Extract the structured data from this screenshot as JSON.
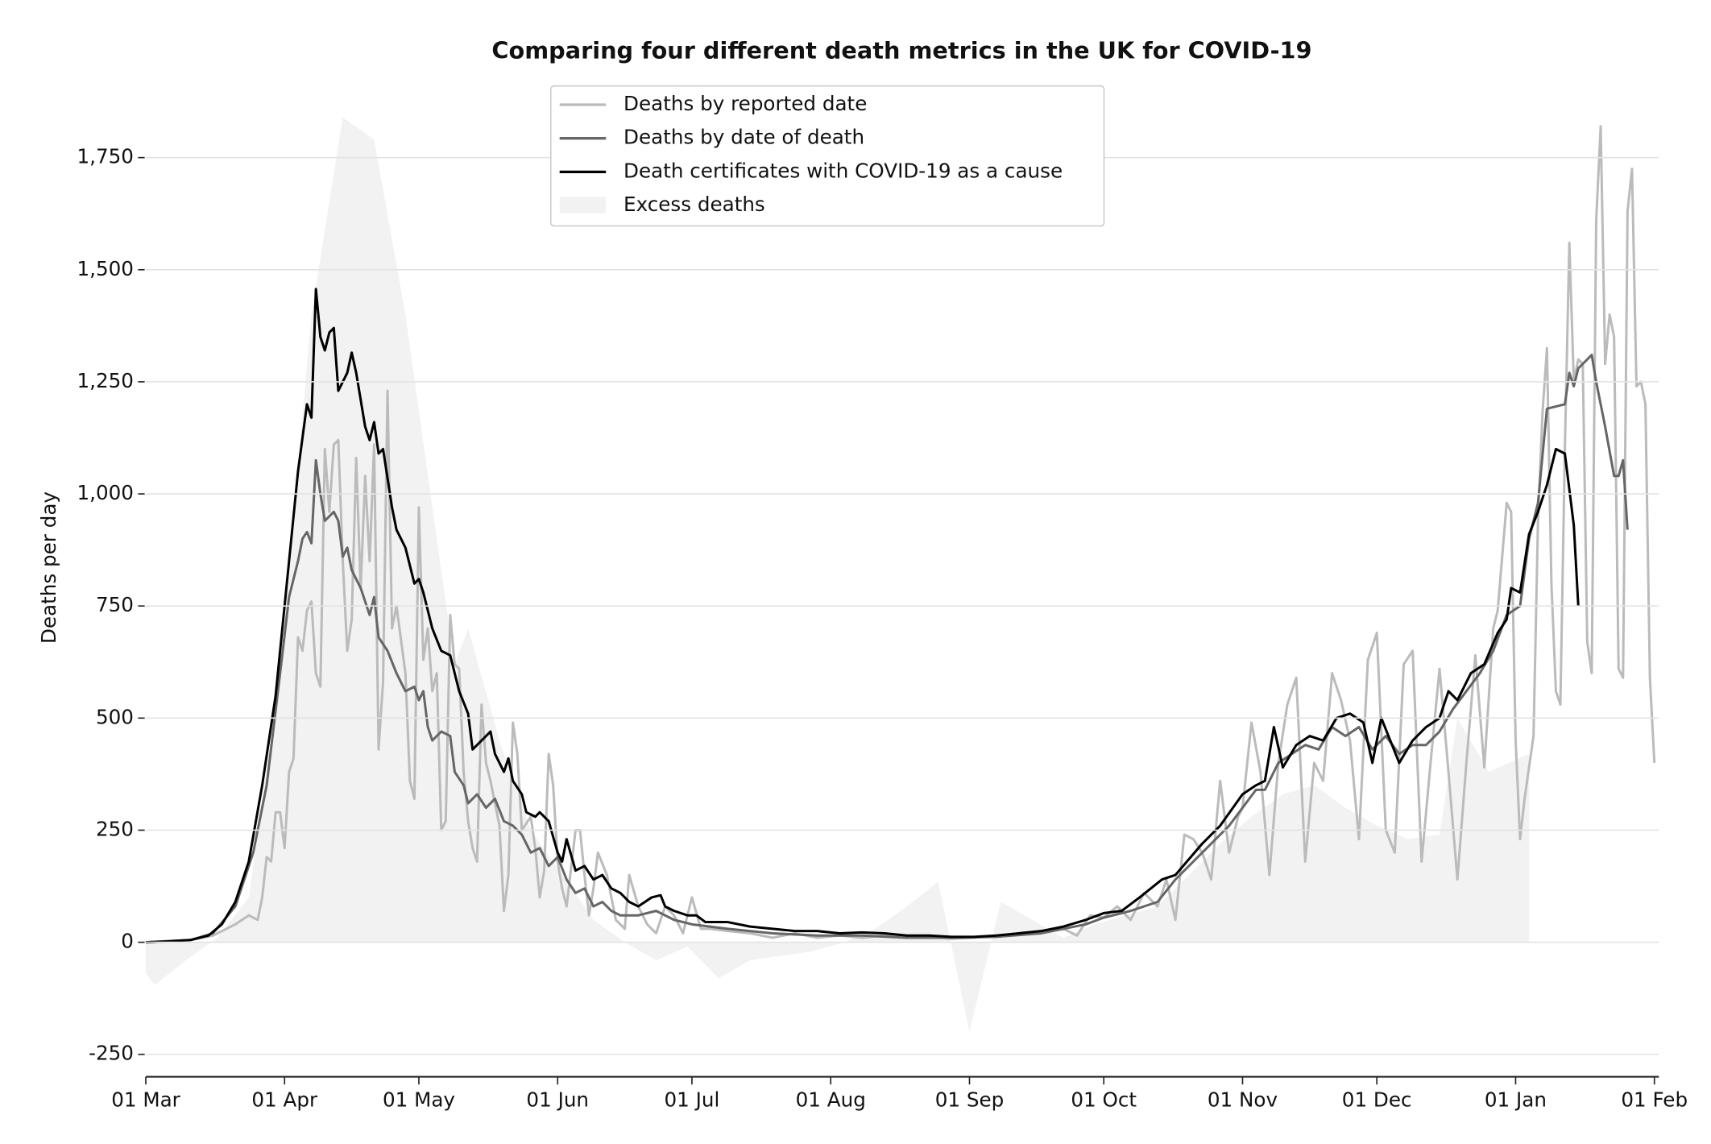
{
  "chart_data": {
    "type": "line",
    "title": "Comparing four different death metrics in the UK for COVID-19",
    "ylabel": "Deaths per day",
    "xlim": [
      0,
      338
    ],
    "ylim": [
      -300,
      1900
    ],
    "xticks": [
      {
        "value": 0,
        "label": "01 Mar"
      },
      {
        "value": 31,
        "label": "01 Apr"
      },
      {
        "value": 61,
        "label": "01 May"
      },
      {
        "value": 92,
        "label": "01 Jun"
      },
      {
        "value": 122,
        "label": "01 Jul"
      },
      {
        "value": 153,
        "label": "01 Aug"
      },
      {
        "value": 184,
        "label": "01 Sep"
      },
      {
        "value": 214,
        "label": "01 Oct"
      },
      {
        "value": 245,
        "label": "01 Nov"
      },
      {
        "value": 275,
        "label": "01 Dec"
      },
      {
        "value": 306,
        "label": "01 Jan"
      },
      {
        "value": 337,
        "label": "01 Feb"
      }
    ],
    "yticks": [
      -250,
      0,
      250,
      500,
      750,
      {
        "value": 1000,
        "label": "1,000"
      },
      {
        "value": 1250,
        "label": "1,250"
      },
      {
        "value": 1500,
        "label": "1,500"
      },
      {
        "value": 1750,
        "label": "1,750"
      }
    ],
    "grid": true,
    "legend": "upper center",
    "series": [
      {
        "name": "Deaths by reported date",
        "color": "#bbbbbb",
        "kind": "line",
        "x": [
          0,
          10,
          15,
          20,
          23,
          25,
          26,
          27,
          28,
          29,
          30,
          31,
          32,
          33,
          34,
          35,
          36,
          37,
          38,
          39,
          40,
          41,
          42,
          43,
          44,
          45,
          46,
          47,
          48,
          49,
          50,
          51,
          52,
          53,
          54,
          55,
          56,
          58,
          59,
          60,
          61,
          62,
          63,
          64,
          65,
          66,
          67,
          68,
          69,
          70,
          71,
          72,
          73,
          74,
          75,
          76,
          77,
          79,
          80,
          81,
          82,
          83,
          84,
          86,
          87,
          88,
          89,
          90,
          91,
          92,
          93,
          94,
          96,
          97,
          98,
          99,
          100,
          101,
          103,
          105,
          107,
          108,
          110,
          112,
          114,
          116,
          118,
          120,
          122,
          124,
          126,
          130,
          135,
          140,
          145,
          150,
          155,
          160,
          165,
          170,
          175,
          180,
          185,
          190,
          195,
          200,
          205,
          208,
          211,
          214,
          217,
          220,
          223,
          226,
          228,
          230,
          232,
          234,
          236,
          238,
          240,
          242,
          244,
          245,
          247,
          249,
          251,
          253,
          255,
          257,
          259,
          261,
          263,
          265,
          267,
          269,
          271,
          273,
          275,
          277,
          279,
          281,
          283,
          285,
          287,
          289,
          291,
          293,
          295,
          297,
          299,
          301,
          302,
          304,
          305,
          306,
          307,
          308,
          310,
          311,
          312,
          313,
          314,
          315,
          316,
          317,
          318,
          319,
          320,
          321,
          322,
          323,
          324,
          325,
          326,
          327,
          328,
          329,
          330,
          331,
          332,
          333,
          334,
          335,
          336,
          337
        ],
        "values": [
          0,
          5,
          15,
          40,
          60,
          50,
          100,
          190,
          180,
          290,
          290,
          210,
          380,
          410,
          680,
          650,
          740,
          760,
          600,
          570,
          1100,
          960,
          1110,
          1120,
          850,
          650,
          720,
          1080,
          790,
          1040,
          850,
          1110,
          430,
          580,
          1230,
          700,
          750,
          600,
          360,
          320,
          970,
          630,
          700,
          560,
          600,
          250,
          270,
          730,
          620,
          610,
          380,
          270,
          210,
          180,
          530,
          400,
          360,
          260,
          70,
          150,
          490,
          420,
          250,
          280,
          210,
          100,
          160,
          420,
          350,
          180,
          120,
          80,
          250,
          250,
          150,
          60,
          120,
          200,
          150,
          50,
          30,
          150,
          80,
          40,
          20,
          80,
          60,
          20,
          100,
          30,
          30,
          25,
          20,
          10,
          20,
          10,
          15,
          10,
          15,
          10,
          12,
          8,
          10,
          15,
          18,
          20,
          30,
          15,
          60,
          55,
          80,
          50,
          110,
          80,
          140,
          50,
          240,
          230,
          200,
          140,
          360,
          200,
          280,
          300,
          490,
          380,
          150,
          400,
          530,
          590,
          180,
          400,
          360,
          600,
          540,
          450,
          230,
          630,
          690,
          250,
          200,
          620,
          650,
          180,
          400,
          610,
          380,
          140,
          400,
          640,
          390,
          700,
          740,
          980,
          960,
          450,
          230,
          320,
          460,
          940,
          1180,
          1325,
          800,
          560,
          530,
          1100,
          1560,
          1250,
          1300,
          1290,
          670,
          600,
          1610,
          1820,
          1290,
          1400,
          1350,
          610,
          590,
          1630,
          1725,
          1240,
          1250,
          1200,
          590,
          400
        ]
      },
      {
        "name": "Deaths by date of death",
        "color": "#666666",
        "kind": "line",
        "x": [
          0,
          10,
          15,
          20,
          24,
          27,
          30,
          32,
          34,
          35,
          36,
          37,
          38,
          39,
          40,
          42,
          43,
          44,
          45,
          46,
          48,
          50,
          51,
          52,
          54,
          56,
          58,
          60,
          61,
          62,
          63,
          64,
          66,
          68,
          69,
          71,
          72,
          74,
          76,
          78,
          80,
          82,
          84,
          86,
          88,
          90,
          92,
          94,
          96,
          98,
          100,
          102,
          104,
          106,
          110,
          114,
          118,
          122,
          126,
          130,
          140,
          150,
          160,
          170,
          180,
          190,
          200,
          210,
          214,
          220,
          226,
          230,
          234,
          238,
          242,
          245,
          248,
          250,
          253,
          256,
          259,
          262,
          265,
          268,
          271,
          274,
          277,
          280,
          283,
          286,
          289,
          292,
          295,
          298,
          301,
          304,
          307,
          309,
          311,
          313,
          315,
          317,
          318,
          319,
          320,
          321,
          323,
          324,
          326,
          328,
          329,
          330,
          331
        ],
        "values": [
          0,
          5,
          20,
          80,
          200,
          350,
          600,
          770,
          850,
          900,
          915,
          890,
          1075,
          1000,
          940,
          960,
          940,
          860,
          880,
          830,
          790,
          730,
          770,
          680,
          650,
          600,
          560,
          570,
          540,
          560,
          480,
          450,
          470,
          460,
          380,
          350,
          310,
          330,
          300,
          320,
          270,
          260,
          240,
          200,
          210,
          170,
          190,
          140,
          110,
          120,
          80,
          90,
          70,
          60,
          60,
          70,
          50,
          40,
          35,
          30,
          20,
          15,
          15,
          10,
          10,
          12,
          20,
          40,
          55,
          70,
          90,
          140,
          180,
          220,
          260,
          300,
          340,
          340,
          400,
          420,
          440,
          430,
          480,
          460,
          480,
          430,
          460,
          420,
          440,
          440,
          470,
          520,
          560,
          600,
          650,
          730,
          750,
          900,
          980,
          1190,
          1195,
          1200,
          1270,
          1240,
          1280,
          1290,
          1310,
          1250,
          1150,
          1040,
          1040,
          1075,
          920
        ]
      },
      {
        "name": "Death certificates with COVID-19 as a cause",
        "color": "#000000",
        "kind": "line",
        "x": [
          0,
          5,
          10,
          14,
          17,
          20,
          23,
          26,
          29,
          32,
          34,
          36,
          37,
          38,
          39,
          40,
          41,
          42,
          43,
          45,
          46,
          47,
          49,
          50,
          51,
          52,
          53,
          55,
          56,
          58,
          60,
          61,
          62,
          64,
          66,
          68,
          70,
          72,
          73,
          75,
          77,
          78,
          80,
          81,
          82,
          84,
          85,
          87,
          88,
          90,
          92,
          93,
          94,
          96,
          98,
          100,
          102,
          104,
          106,
          108,
          110,
          113,
          115,
          116,
          118,
          121,
          123,
          125,
          130,
          135,
          140,
          145,
          150,
          155,
          160,
          165,
          170,
          175,
          180,
          185,
          190,
          195,
          200,
          205,
          210,
          214,
          218,
          222,
          227,
          230,
          236,
          240,
          245,
          248,
          250,
          252,
          254,
          257,
          260,
          263,
          266,
          269,
          272,
          274,
          276,
          278,
          280,
          283,
          286,
          289,
          291,
          293,
          296,
          299,
          302,
          304,
          305,
          307,
          309,
          311,
          313,
          315,
          317,
          319,
          320
        ],
        "values": [
          0,
          2,
          5,
          15,
          40,
          90,
          180,
          350,
          550,
          850,
          1050,
          1200,
          1170,
          1457,
          1350,
          1320,
          1360,
          1370,
          1230,
          1270,
          1315,
          1270,
          1150,
          1120,
          1160,
          1090,
          1100,
          970,
          920,
          880,
          800,
          810,
          780,
          700,
          650,
          640,
          560,
          510,
          430,
          450,
          470,
          420,
          380,
          410,
          360,
          330,
          290,
          280,
          290,
          270,
          200,
          180,
          230,
          160,
          170,
          140,
          150,
          120,
          110,
          90,
          80,
          100,
          105,
          80,
          70,
          60,
          60,
          45,
          45,
          35,
          30,
          25,
          25,
          20,
          22,
          20,
          15,
          15,
          12,
          12,
          15,
          20,
          25,
          35,
          50,
          65,
          70,
          100,
          140,
          150,
          220,
          260,
          330,
          350,
          360,
          480,
          390,
          440,
          460,
          450,
          500,
          510,
          490,
          400,
          500,
          450,
          400,
          450,
          480,
          500,
          560,
          540,
          600,
          620,
          690,
          720,
          790,
          780,
          910,
          960,
          1020,
          1100,
          1090,
          930,
          750
        ]
      },
      {
        "name": "Excess deaths",
        "color": "#f2f2f2",
        "kind": "area",
        "x": [
          0,
          2,
          9,
          16,
          23,
          30,
          37,
          44,
          51,
          58,
          65,
          69,
          72,
          79,
          86,
          93,
          100,
          107,
          114,
          121,
          128,
          135,
          142,
          149,
          156,
          163,
          170,
          177,
          184,
          191,
          198,
          205,
          212,
          219,
          226,
          233,
          240,
          247,
          254,
          261,
          268,
          275,
          282,
          289,
          293,
          300,
          309
        ],
        "values": [
          -70,
          -95,
          -40,
          10,
          100,
          600,
          1400,
          1840,
          1790,
          1400,
          900,
          620,
          700,
          450,
          250,
          150,
          50,
          0,
          -40,
          -10,
          -80,
          -40,
          -30,
          -20,
          0,
          30,
          80,
          135,
          -200,
          90,
          50,
          10,
          40,
          60,
          80,
          150,
          220,
          280,
          330,
          350,
          300,
          260,
          230,
          240,
          500,
          380,
          420
        ]
      }
    ]
  }
}
